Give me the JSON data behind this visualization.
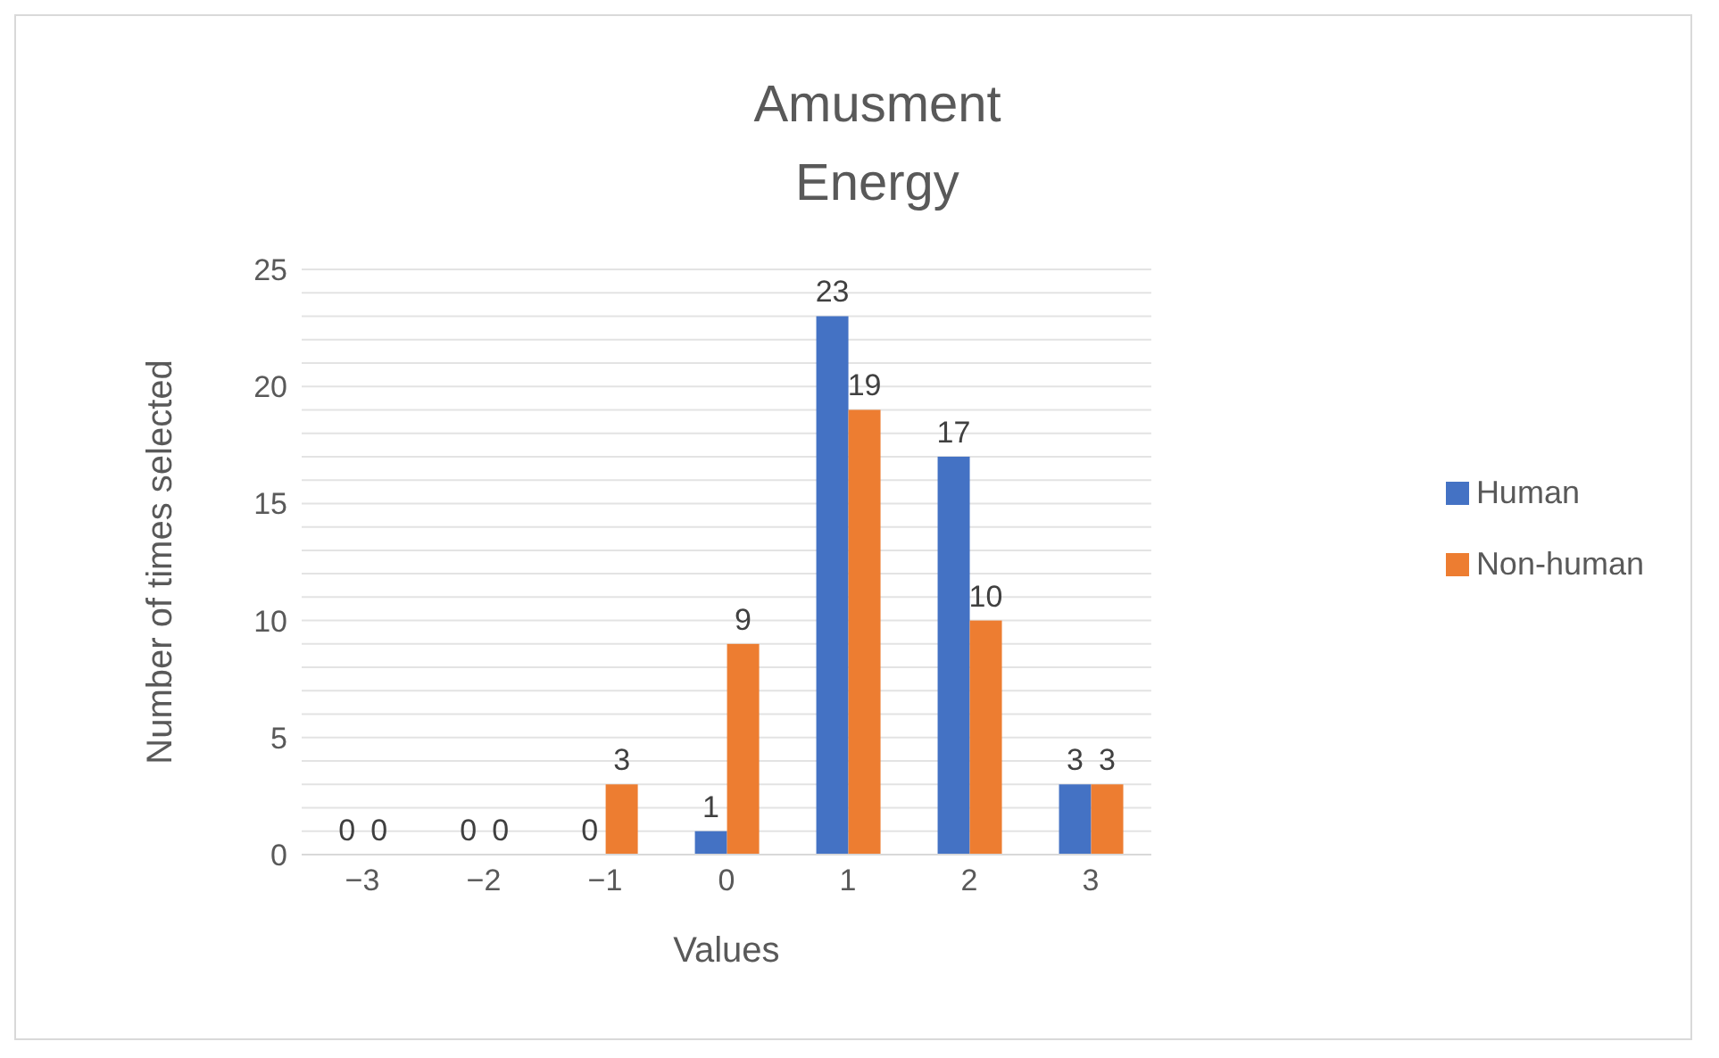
{
  "chart_data": {
    "type": "bar",
    "title": "Amusment Energy",
    "xlabel": "Values",
    "ylabel": "Number of times selected",
    "categories": [
      "−3",
      "−2",
      "−1",
      "0",
      "1",
      "2",
      "3"
    ],
    "series": [
      {
        "name": "Human",
        "color": "#4472c4",
        "values": [
          0,
          0,
          0,
          1,
          23,
          17,
          3
        ]
      },
      {
        "name": "Non-human",
        "color": "#ed7d31",
        "values": [
          0,
          0,
          3,
          9,
          19,
          10,
          3
        ]
      }
    ],
    "ylim": [
      0,
      25
    ],
    "yticks": [
      0,
      {
        "value": 1,
        "label": null
      },
      {
        "value": 2,
        "label": null
      },
      {
        "value": 3,
        "label": null
      },
      {
        "value": 4,
        "label": null
      },
      5,
      {
        "value": 6,
        "label": null
      },
      {
        "value": 7,
        "label": null
      },
      {
        "value": 8,
        "label": null
      },
      {
        "value": 9,
        "label": null
      },
      10,
      {
        "value": 11,
        "label": null
      },
      {
        "value": 12,
        "label": null
      },
      {
        "value": 13,
        "label": null
      },
      {
        "value": 14,
        "label": null
      },
      15,
      {
        "value": 16,
        "label": null
      },
      {
        "value": 17,
        "label": null
      },
      {
        "value": 18,
        "label": null
      },
      {
        "value": 19,
        "label": null
      },
      20,
      {
        "value": 21,
        "label": null
      },
      {
        "value": 22,
        "label": null
      },
      {
        "value": 23,
        "label": null
      },
      {
        "value": 24,
        "label": null
      },
      25
    ],
    "grid": "y",
    "legend": "right",
    "data_labels": true
  }
}
